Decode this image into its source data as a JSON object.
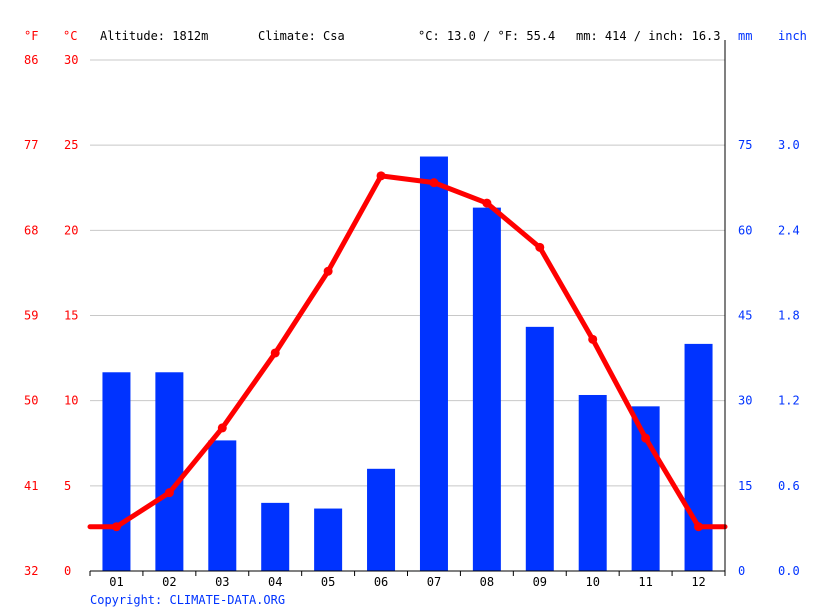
{
  "header": {
    "unit_f": "°F",
    "unit_c": "°C",
    "altitude": "Altitude: 1812m",
    "climate": "Climate: Csa",
    "avg_temp": "°C: 13.0 / °F: 55.4",
    "avg_precip": "mm: 414 / inch: 16.3",
    "unit_mm": "mm",
    "unit_inch": "inch"
  },
  "footer": {
    "copyright": "Copyright: CLIMATE-DATA.ORG"
  },
  "colors": {
    "temperature": "#ff0000",
    "precipitation": "#0033ff",
    "grid": "#c8c8c8",
    "axis": "#000000"
  },
  "chart_data": {
    "type": "bar",
    "categories": [
      "01",
      "02",
      "03",
      "04",
      "05",
      "06",
      "07",
      "08",
      "09",
      "10",
      "11",
      "12"
    ],
    "series": [
      {
        "type": "bar",
        "axis": "right",
        "values": [
          35,
          35,
          23,
          12,
          11,
          18,
          73,
          64,
          43,
          31,
          29,
          40
        ]
      },
      {
        "type": "line",
        "axis": "left",
        "values": [
          2.6,
          4.6,
          8.4,
          12.8,
          17.6,
          23.2,
          22.8,
          21.6,
          19.0,
          13.6,
          7.8,
          2.6
        ]
      }
    ],
    "left_axis": {
      "ylim": [
        0,
        30
      ],
      "ticks_c": [
        "0",
        "5",
        "10",
        "15",
        "20",
        "25",
        "30"
      ],
      "ticks_f": [
        "32",
        "41",
        "50",
        "59",
        "68",
        "77",
        "86"
      ]
    },
    "right_axis": {
      "ylim": [
        0,
        90
      ],
      "ticks_mm": [
        "0",
        "15",
        "30",
        "45",
        "60",
        "75"
      ],
      "ticks_inch": [
        "0.0",
        "0.6",
        "1.2",
        "1.8",
        "2.4",
        "3.0"
      ]
    },
    "grid": true,
    "xlabel": "",
    "ylabel": ""
  }
}
